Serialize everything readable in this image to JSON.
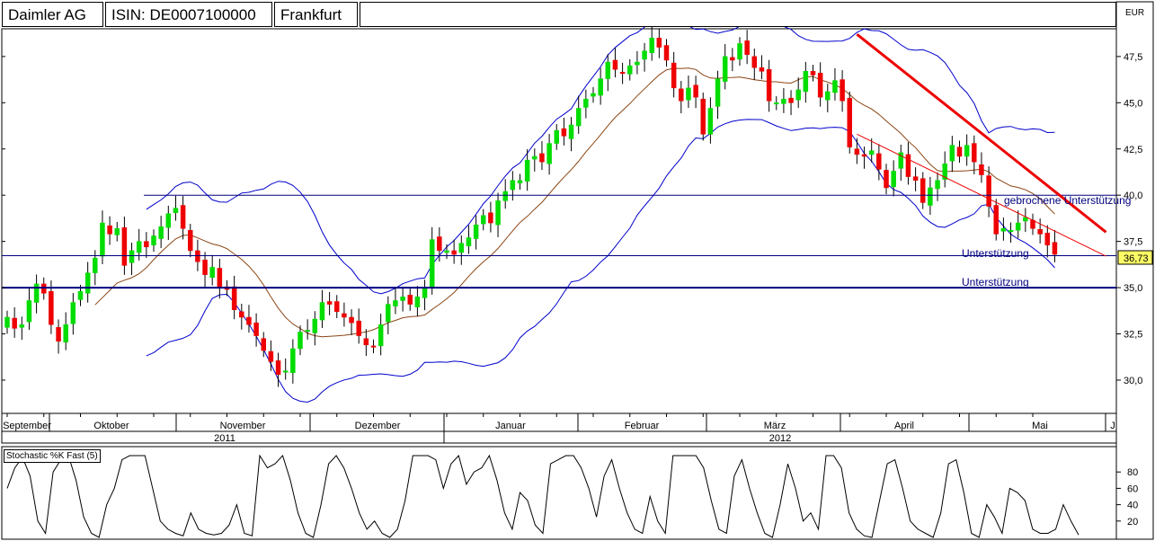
{
  "header": {
    "name": "Daimler AG",
    "isin": "ISIN: DE0007100000",
    "exchange": "Frankfurt"
  },
  "currency": "EUR",
  "last_price": "36,73",
  "annotations": {
    "broken_support": "gebrochene Unterstützung",
    "support_1": "Unterstützung",
    "support_2": "Unterstützung"
  },
  "indicator_label": "Stochastic %K Fast (5)",
  "colors": {
    "up": "#00dd00",
    "down": "#ee0000",
    "trend_line": "#ee0000",
    "support_line": "#000080",
    "bollinger": "#0000cc",
    "stochastic": "#000000",
    "price_tag": "#ffff66"
  },
  "chart_data": [
    {
      "type": "candlestick",
      "title": "Daimler AG",
      "ylim": [
        28.2,
        49.0
      ],
      "yticks": [
        "47,5",
        "45,0",
        "42,5",
        "40,0",
        "37,5",
        "35,0",
        "32,5",
        "30,0"
      ],
      "ytick_values": [
        47.5,
        45.0,
        42.5,
        40.0,
        37.5,
        35.0,
        32.5,
        30.0
      ],
      "xlabels_month": [
        "September",
        "Oktober",
        "November",
        "Dezember",
        "Januar",
        "Februar",
        "März",
        "April",
        "Mai",
        "J"
      ],
      "xlabels_year": [
        "2011",
        "2012"
      ],
      "closes": [
        33.4,
        32.8,
        33.0,
        34.3,
        35.2,
        34.7,
        33.0,
        32.1,
        33.0,
        34.2,
        34.8,
        35.8,
        36.6,
        38.5,
        37.9,
        38.2,
        36.2,
        37.0,
        37.5,
        37.2,
        37.8,
        38.3,
        39.0,
        39.3,
        38.2,
        37.0,
        36.4,
        35.7,
        36.1,
        35.0,
        34.9,
        33.8,
        33.4,
        33.0,
        32.4,
        31.6,
        31.0,
        30.3,
        30.5,
        31.7,
        32.6,
        32.7,
        33.3,
        34.2,
        34.1,
        33.7,
        33.4,
        33.1,
        32.4,
        31.9,
        31.8,
        33.0,
        34.1,
        34.3,
        34.5,
        34.1,
        34.5,
        35.0,
        37.6,
        37.0,
        37.0,
        36.8,
        37.4,
        37.7,
        38.4,
        38.9,
        38.5,
        39.7,
        40.2,
        40.8,
        40.8,
        41.9,
        42.1,
        41.8,
        42.8,
        43.5,
        43.2,
        43.8,
        44.7,
        45.2,
        45.5,
        46.3,
        47.2,
        46.8,
        46.6,
        47.0,
        47.2,
        47.8,
        48.5,
        48.0,
        47.3,
        45.8,
        45.1,
        45.8,
        45.3,
        43.3,
        44.7,
        46.3,
        47.5,
        47.3,
        48.2,
        47.6,
        46.9,
        46.7,
        45.1,
        45.0,
        45.2,
        45.0,
        45.7,
        46.7,
        46.5,
        45.3,
        45.6,
        46.2,
        45.1,
        42.6,
        42.2,
        42.1,
        42.4,
        41.4,
        40.4,
        41.3,
        42.3,
        41.0,
        40.8,
        39.6,
        40.4,
        40.8,
        41.7,
        42.7,
        42.1,
        42.7,
        41.8,
        41.1,
        39.4,
        37.9,
        38.2,
        38.1,
        38.5,
        38.8,
        38.2,
        37.9,
        37.3,
        36.8
      ],
      "lines": {
        "sma_brown": "moving average",
        "bollinger_upper": "upper band",
        "bollinger_lower": "lower band"
      },
      "horizontal_levels": [
        40.0,
        36.73,
        35.0
      ],
      "trend_lines": [
        {
          "from_index": 116,
          "from_value": 48.7,
          "to_index": 150,
          "to_value": 38.0
        },
        {
          "from_index": 116,
          "from_value": 43.3,
          "to_index": 150,
          "to_value": 36.7
        }
      ]
    },
    {
      "type": "line",
      "title": "Stochastic %K Fast (5)",
      "ylim": [
        0,
        100
      ],
      "yticks": [
        "80",
        "60",
        "40",
        "20"
      ],
      "ytick_values": [
        80,
        60,
        40,
        20
      ],
      "values": [
        60,
        85,
        98,
        75,
        20,
        5,
        80,
        95,
        100,
        70,
        25,
        5,
        0,
        40,
        60,
        95,
        100,
        100,
        100,
        60,
        20,
        10,
        5,
        2,
        30,
        10,
        5,
        3,
        5,
        15,
        40,
        5,
        2,
        100,
        85,
        90,
        100,
        70,
        30,
        5,
        0,
        40,
        90,
        100,
        85,
        60,
        30,
        10,
        20,
        5,
        0,
        10,
        45,
        100,
        100,
        100,
        95,
        60,
        90,
        100,
        65,
        80,
        85,
        100,
        70,
        30,
        10,
        55,
        45,
        15,
        5,
        90,
        95,
        100,
        100,
        85,
        60,
        25,
        75,
        95,
        60,
        30,
        10,
        5,
        50,
        20,
        5,
        100,
        100,
        100,
        100,
        85,
        45,
        10,
        5,
        75,
        95,
        60,
        30,
        5,
        0,
        40,
        90,
        60,
        20,
        30,
        10,
        100,
        100,
        85,
        30,
        10,
        2,
        0,
        45,
        90,
        95,
        60,
        20,
        10,
        5,
        0,
        30,
        90,
        95,
        55,
        5,
        0,
        40,
        25,
        5,
        60,
        55,
        45,
        10,
        5,
        5,
        10,
        40,
        20,
        3
      ]
    }
  ]
}
